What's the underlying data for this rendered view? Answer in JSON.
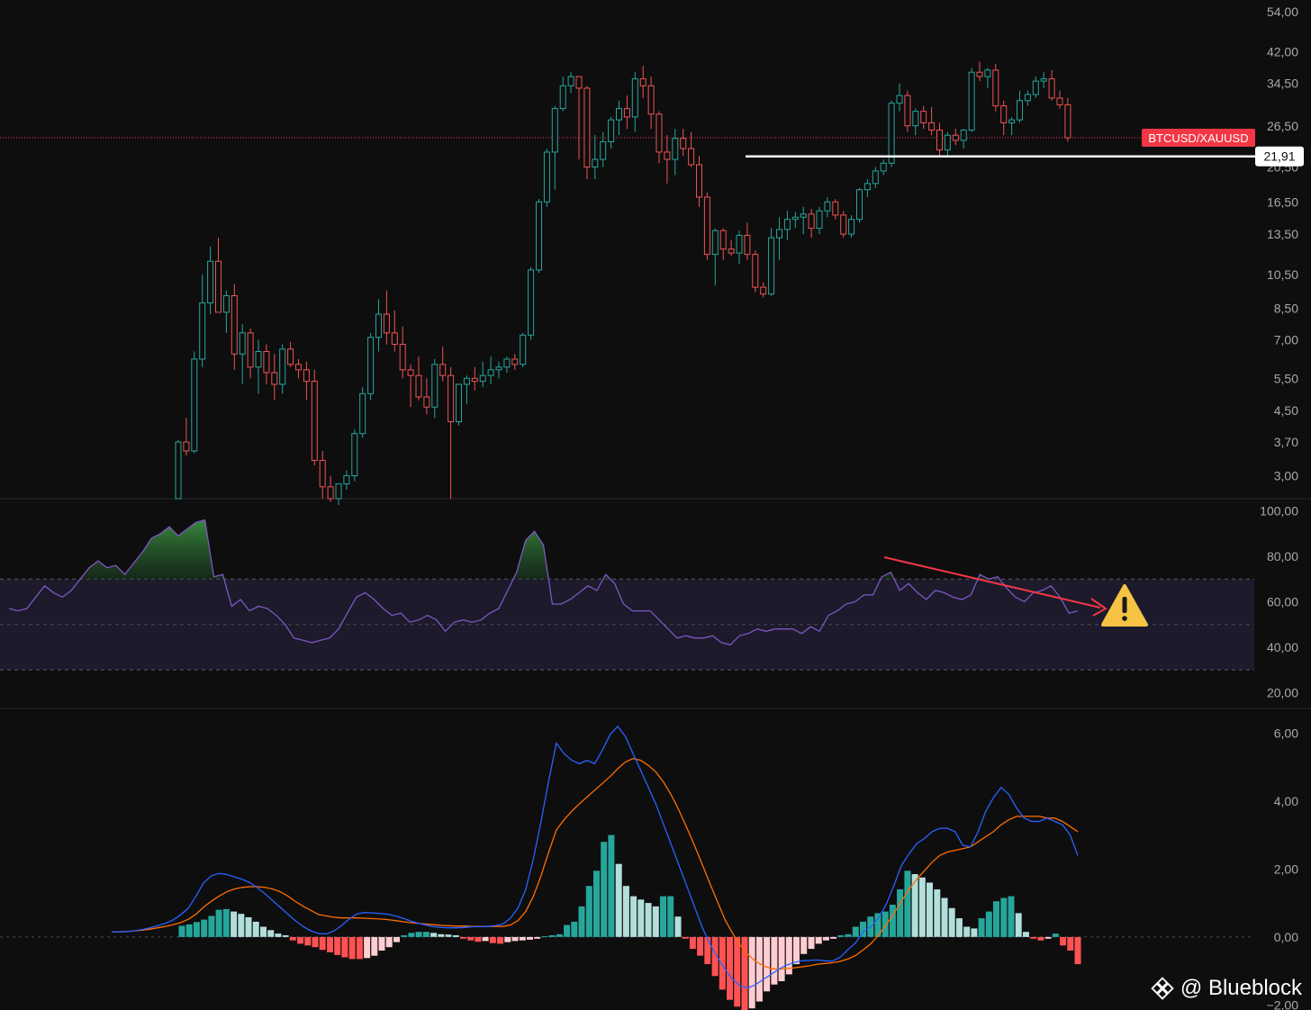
{
  "watermark": {
    "text": "@ Blueblock",
    "icon": "binance-logo-icon"
  },
  "colors": {
    "background": "#0e0e0f",
    "bull": "#26a69a",
    "bear": "#ef5350",
    "rsi_line": "#7e57c2",
    "rsi_band": "#1c1a2b",
    "overbought_fill": "#2e7d32",
    "macd_line": "#2962ff",
    "signal_line": "#ff6d00",
    "hist_bull_strong": "#26a69a",
    "hist_bull_weak": "#b2dfdb",
    "hist_bear_strong": "#ff5252",
    "hist_bear_weak": "#ffcdd2",
    "price_tag": "#f23645",
    "annotation_arrow": "#f23645",
    "warning": "#f6c344"
  },
  "chart_data": [
    {
      "type": "candlestick",
      "name": "price",
      "symbol_tag": "BTCUSD/XAUUSD",
      "scale": "log",
      "ylim": [
        2.6,
        58
      ],
      "y_ticks": [
        "54,00",
        "42,00",
        "34,50",
        "26,50",
        "20,50",
        "16,50",
        "13,50",
        "10,50",
        "8,50",
        "7,00",
        "5,50",
        "4,50",
        "3,70",
        "3,00"
      ],
      "last_price": 24.6,
      "support_level": {
        "value": 21.91,
        "label": "21,91"
      },
      "candles_ohlc": [
        [
          2.6,
          3.75,
          2.6,
          3.7
        ],
        [
          3.7,
          4.3,
          3.4,
          3.5
        ],
        [
          3.5,
          6.5,
          3.45,
          6.2
        ],
        [
          6.2,
          10.5,
          5.9,
          8.8
        ],
        [
          8.8,
          12.5,
          8.2,
          11.4
        ],
        [
          11.4,
          13.2,
          8.5,
          8.3
        ],
        [
          8.3,
          9.5,
          7.3,
          9.2
        ],
        [
          9.2,
          9.9,
          5.8,
          6.4
        ],
        [
          6.4,
          7.7,
          5.3,
          7.3
        ],
        [
          7.3,
          7.5,
          5.5,
          5.9
        ],
        [
          5.9,
          7.0,
          5.0,
          6.5
        ],
        [
          6.5,
          6.8,
          5.3,
          5.7
        ],
        [
          5.7,
          6.4,
          4.8,
          5.3
        ],
        [
          5.3,
          6.8,
          5.0,
          6.6
        ],
        [
          6.6,
          6.9,
          5.9,
          6.0
        ],
        [
          6.0,
          6.2,
          5.5,
          5.8
        ],
        [
          5.8,
          6.1,
          4.8,
          5.4
        ],
        [
          5.4,
          5.8,
          3.2,
          3.3
        ],
        [
          3.3,
          3.5,
          2.6,
          2.8
        ],
        [
          2.8,
          3.0,
          2.55,
          2.6
        ],
        [
          2.6,
          2.85,
          2.5,
          2.85
        ],
        [
          2.85,
          3.1,
          2.75,
          3.0
        ],
        [
          3.0,
          4.0,
          2.9,
          3.9
        ],
        [
          3.9,
          5.2,
          3.8,
          5.0
        ],
        [
          5.0,
          7.3,
          4.8,
          7.1
        ],
        [
          7.1,
          9.0,
          6.5,
          8.2
        ],
        [
          8.2,
          9.5,
          6.8,
          7.3
        ],
        [
          7.3,
          8.4,
          6.5,
          6.8
        ],
        [
          6.8,
          7.6,
          5.5,
          5.8
        ],
        [
          5.8,
          6.0,
          4.6,
          5.6
        ],
        [
          5.6,
          6.3,
          4.8,
          4.9
        ],
        [
          4.9,
          5.5,
          4.4,
          4.6
        ],
        [
          4.6,
          6.2,
          4.3,
          6.0
        ],
        [
          6.0,
          6.7,
          5.4,
          5.6
        ],
        [
          5.6,
          5.9,
          2.6,
          4.2
        ],
        [
          4.2,
          5.3,
          4.1,
          5.3
        ],
        [
          5.3,
          5.6,
          4.7,
          5.5
        ],
        [
          5.5,
          5.9,
          5.1,
          5.4
        ],
        [
          5.4,
          6.1,
          5.2,
          5.6
        ],
        [
          5.6,
          6.3,
          5.3,
          5.8
        ],
        [
          5.8,
          6.1,
          5.5,
          5.9
        ],
        [
          5.9,
          6.3,
          5.7,
          6.2
        ],
        [
          6.2,
          6.4,
          5.8,
          6.0
        ],
        [
          6.0,
          7.3,
          5.9,
          7.2
        ],
        [
          7.2,
          11.0,
          7.0,
          10.8
        ],
        [
          10.8,
          16.8,
          10.6,
          16.5
        ],
        [
          16.5,
          23.0,
          16.0,
          22.5
        ],
        [
          22.5,
          30.0,
          17.8,
          29.5
        ],
        [
          29.5,
          36.0,
          29.0,
          34.0
        ],
        [
          34.0,
          37.0,
          32.5,
          36.0
        ],
        [
          36.0,
          35.5,
          21.5,
          33.5
        ],
        [
          33.5,
          34.0,
          19.0,
          20.5
        ],
        [
          20.5,
          25.0,
          19.0,
          21.5
        ],
        [
          21.5,
          25.5,
          20.5,
          24.0
        ],
        [
          24.0,
          28.0,
          23.0,
          27.5
        ],
        [
          27.5,
          31.0,
          25.0,
          29.5
        ],
        [
          29.5,
          32.0,
          26.0,
          28.0
        ],
        [
          28.0,
          37.0,
          25.5,
          35.5
        ],
        [
          35.5,
          38.5,
          31.5,
          34.0
        ],
        [
          34.0,
          36.0,
          26.0,
          28.5
        ],
        [
          28.5,
          29.0,
          21.0,
          22.5
        ],
        [
          22.5,
          25.0,
          18.5,
          21.5
        ],
        [
          21.5,
          26.0,
          19.5,
          24.5
        ],
        [
          24.5,
          26.0,
          22.0,
          23.0
        ],
        [
          23.0,
          25.5,
          20.5,
          20.8
        ],
        [
          20.8,
          22.0,
          16.0,
          17.0
        ],
        [
          17.0,
          17.5,
          11.5,
          11.9
        ],
        [
          11.9,
          14.0,
          9.8,
          13.8
        ],
        [
          13.8,
          14.0,
          11.5,
          12.3
        ],
        [
          12.3,
          13.0,
          11.8,
          12.0
        ],
        [
          12.0,
          13.8,
          11.2,
          13.4
        ],
        [
          13.4,
          14.5,
          11.5,
          11.9
        ],
        [
          11.9,
          12.2,
          9.4,
          9.7
        ],
        [
          9.7,
          10.0,
          9.1,
          9.3
        ],
        [
          9.3,
          14.0,
          9.2,
          13.2
        ],
        [
          13.2,
          15.0,
          11.5,
          13.9
        ],
        [
          13.9,
          15.6,
          13.0,
          14.8
        ],
        [
          14.8,
          15.5,
          14.0,
          15.0
        ],
        [
          15.0,
          16.0,
          13.5,
          15.3
        ],
        [
          15.3,
          15.8,
          13.2,
          14.0
        ],
        [
          14.0,
          16.0,
          13.5,
          15.6
        ],
        [
          15.6,
          17.0,
          15.0,
          16.5
        ],
        [
          16.5,
          16.8,
          14.8,
          15.2
        ],
        [
          15.2,
          15.6,
          13.2,
          13.5
        ],
        [
          13.5,
          15.2,
          13.2,
          14.8
        ],
        [
          14.8,
          18.0,
          14.5,
          17.8
        ],
        [
          17.8,
          19.0,
          17.0,
          18.5
        ],
        [
          18.5,
          20.5,
          18.0,
          20.0
        ],
        [
          20.0,
          21.5,
          19.5,
          21.0
        ],
        [
          21.0,
          31.0,
          20.5,
          30.5
        ],
        [
          30.5,
          34.5,
          29.0,
          32.0
        ],
        [
          32.0,
          33.0,
          25.5,
          26.5
        ],
        [
          26.5,
          29.5,
          25.0,
          29.0
        ],
        [
          29.0,
          30.0,
          26.0,
          27.0
        ],
        [
          27.0,
          29.8,
          25.0,
          25.8
        ],
        [
          25.8,
          27.0,
          22.0,
          22.8
        ],
        [
          22.8,
          25.5,
          22.0,
          25.0
        ],
        [
          25.0,
          26.0,
          23.5,
          24.2
        ],
        [
          24.2,
          26.0,
          23.0,
          25.8
        ],
        [
          25.8,
          38.0,
          25.5,
          37.0
        ],
        [
          37.0,
          39.5,
          35.0,
          36.0
        ],
        [
          36.0,
          38.0,
          33.5,
          37.5
        ],
        [
          37.5,
          39.0,
          29.0,
          30.0
        ],
        [
          30.0,
          31.0,
          25.0,
          27.0
        ],
        [
          27.0,
          28.0,
          25.0,
          27.5
        ],
        [
          27.5,
          33.0,
          27.0,
          31.0
        ],
        [
          31.0,
          33.0,
          30.0,
          32.2
        ],
        [
          32.2,
          36.0,
          31.5,
          35.0
        ],
        [
          35.0,
          37.0,
          33.5,
          35.5
        ],
        [
          35.5,
          37.5,
          31.0,
          31.5
        ],
        [
          31.5,
          33.0,
          29.5,
          30.2
        ],
        [
          30.2,
          31.5,
          24.0,
          24.6
        ]
      ]
    },
    {
      "type": "line",
      "name": "rsi",
      "ylim": [
        13,
        105
      ],
      "y_ticks": [
        "100,00",
        "80,00",
        "60,00",
        "40,00",
        "20,00"
      ],
      "band": [
        30,
        70
      ],
      "midline": 50,
      "values": [
        57,
        56,
        57,
        62,
        67,
        64,
        62,
        65,
        70,
        75,
        78,
        75,
        76,
        72,
        77,
        82,
        88,
        90,
        93,
        89,
        92,
        95,
        96,
        71,
        72,
        58,
        61,
        56,
        58,
        57,
        54,
        50,
        44,
        43,
        42,
        43,
        44,
        48,
        55,
        62,
        64,
        61,
        57,
        54,
        55,
        51,
        52,
        54,
        52,
        47,
        51,
        52,
        51,
        52,
        55,
        57,
        65,
        73,
        87,
        91,
        85,
        59,
        59,
        61,
        64,
        67,
        65,
        72,
        68,
        59,
        56,
        56,
        56,
        52,
        48,
        44,
        45,
        44,
        44,
        45,
        42,
        41,
        45,
        46,
        48,
        47,
        48,
        48,
        48,
        46,
        49,
        47,
        54,
        56,
        59,
        60,
        63,
        63,
        71,
        73,
        65,
        68,
        64,
        61,
        65,
        64,
        62,
        61,
        63,
        72,
        70,
        71,
        66,
        62,
        60,
        64,
        65,
        67,
        62,
        55,
        56
      ],
      "annotation": {
        "type": "arrow",
        "direction": "down-right"
      },
      "warning_icon": "warning-icon"
    },
    {
      "type": "bar",
      "name": "macd",
      "ylim": [
        -2.15,
        6.7
      ],
      "y_ticks": [
        "6,00",
        "4,00",
        "2,00",
        "0,00",
        "−2,00"
      ],
      "macd_line": [
        0.15,
        0.15,
        0.16,
        0.18,
        0.22,
        0.27,
        0.33,
        0.4,
        0.5,
        0.65,
        0.85,
        1.2,
        1.6,
        1.8,
        1.87,
        1.84,
        1.77,
        1.7,
        1.6,
        1.45,
        1.27,
        1.07,
        0.87,
        0.67,
        0.47,
        0.3,
        0.18,
        0.1,
        0.09,
        0.18,
        0.34,
        0.53,
        0.68,
        0.72,
        0.71,
        0.69,
        0.67,
        0.62,
        0.55,
        0.47,
        0.4,
        0.35,
        0.3,
        0.28,
        0.27,
        0.27,
        0.28,
        0.3,
        0.3,
        0.31,
        0.33,
        0.38,
        0.55,
        0.85,
        1.4,
        2.3,
        3.4,
        4.6,
        5.7,
        5.4,
        5.2,
        5.1,
        5.2,
        5.1,
        5.5,
        5.95,
        6.2,
        5.9,
        5.4,
        4.9,
        4.4,
        3.9,
        3.3,
        2.7,
        2.1,
        1.5,
        0.9,
        0.3,
        -0.2,
        -0.6,
        -0.95,
        -1.25,
        -1.45,
        -1.5,
        -1.4,
        -1.25,
        -1.1,
        -0.95,
        -0.83,
        -0.75,
        -0.7,
        -0.69,
        -0.68,
        -0.7,
        -0.71,
        -0.6,
        -0.38,
        -0.18,
        0.15,
        0.3,
        0.55,
        0.95,
        1.5,
        2.1,
        2.45,
        2.75,
        2.9,
        3.1,
        3.2,
        3.2,
        3.1,
        2.7,
        2.65,
        3.1,
        3.7,
        4.1,
        4.4,
        4.2,
        3.8,
        3.5,
        3.4,
        3.4,
        3.5,
        3.4,
        3.3,
        3.0,
        2.4
      ],
      "signal_line": [
        0.15,
        0.15,
        0.16,
        0.18,
        0.2,
        0.23,
        0.27,
        0.31,
        0.36,
        0.42,
        0.52,
        0.67,
        0.88,
        1.05,
        1.2,
        1.33,
        1.41,
        1.46,
        1.48,
        1.48,
        1.46,
        1.41,
        1.33,
        1.2,
        1.04,
        0.9,
        0.78,
        0.66,
        0.62,
        0.58,
        0.56,
        0.56,
        0.56,
        0.55,
        0.54,
        0.53,
        0.51,
        0.48,
        0.45,
        0.42,
        0.4,
        0.38,
        0.36,
        0.34,
        0.33,
        0.32,
        0.32,
        0.31,
        0.31,
        0.31,
        0.31,
        0.31,
        0.35,
        0.48,
        0.75,
        1.2,
        1.8,
        2.5,
        3.15,
        3.45,
        3.7,
        3.92,
        4.12,
        4.32,
        4.52,
        4.72,
        4.95,
        5.15,
        5.25,
        5.2,
        5.05,
        4.85,
        4.55,
        4.17,
        3.72,
        3.22,
        2.7,
        2.15,
        1.59,
        1.04,
        0.5,
        0.1,
        -0.25,
        -0.52,
        -0.72,
        -0.85,
        -0.93,
        -0.95,
        -0.93,
        -0.91,
        -0.88,
        -0.85,
        -0.8,
        -0.78,
        -0.76,
        -0.72,
        -0.65,
        -0.55,
        -0.38,
        -0.2,
        0.05,
        0.35,
        0.68,
        1.05,
        1.4,
        1.7,
        1.95,
        2.2,
        2.4,
        2.5,
        2.55,
        2.6,
        2.65,
        2.8,
        2.95,
        3.1,
        3.3,
        3.45,
        3.55,
        3.55,
        3.55,
        3.55,
        3.5,
        3.5,
        3.4,
        3.25,
        3.1
      ],
      "histogram": [
        0.33,
        0.37,
        0.44,
        0.51,
        0.62,
        0.8,
        0.82,
        0.75,
        0.68,
        0.58,
        0.45,
        0.3,
        0.2,
        0.1,
        0.05,
        -0.1,
        -0.2,
        -0.25,
        -0.3,
        -0.38,
        -0.45,
        -0.53,
        -0.6,
        -0.65,
        -0.65,
        -0.62,
        -0.55,
        -0.4,
        -0.3,
        -0.15,
        0.05,
        0.12,
        0.15,
        0.15,
        0.12,
        0.08,
        0.07,
        0.05,
        -0.05,
        -0.1,
        -0.14,
        -0.12,
        -0.18,
        -0.2,
        -0.15,
        -0.12,
        -0.1,
        -0.08,
        -0.05,
        0.02,
        0.05,
        0.08,
        0.35,
        0.45,
        0.9,
        1.5,
        1.95,
        2.8,
        3.0,
        2.15,
        1.5,
        1.2,
        1.1,
        1.0,
        0.9,
        1.2,
        1.2,
        0.6,
        -0.05,
        -0.35,
        -0.55,
        -0.8,
        -1.15,
        -1.55,
        -1.85,
        -2.05,
        -2.15,
        -2.1,
        -1.9,
        -1.6,
        -1.4,
        -1.3,
        -1.1,
        -0.8,
        -0.5,
        -0.35,
        -0.2,
        -0.1,
        -0.05,
        0.05,
        0.08,
        0.3,
        0.45,
        0.6,
        0.7,
        0.75,
        0.95,
        1.4,
        1.95,
        1.85,
        1.75,
        1.6,
        1.4,
        1.15,
        0.85,
        0.55,
        0.3,
        0.25,
        0.55,
        0.75,
        1.05,
        1.15,
        1.2,
        0.7,
        0.15,
        -0.05,
        -0.1,
        -0.05,
        0.1,
        -0.25,
        -0.4,
        -0.8
      ],
      "zero_line": 0
    }
  ]
}
